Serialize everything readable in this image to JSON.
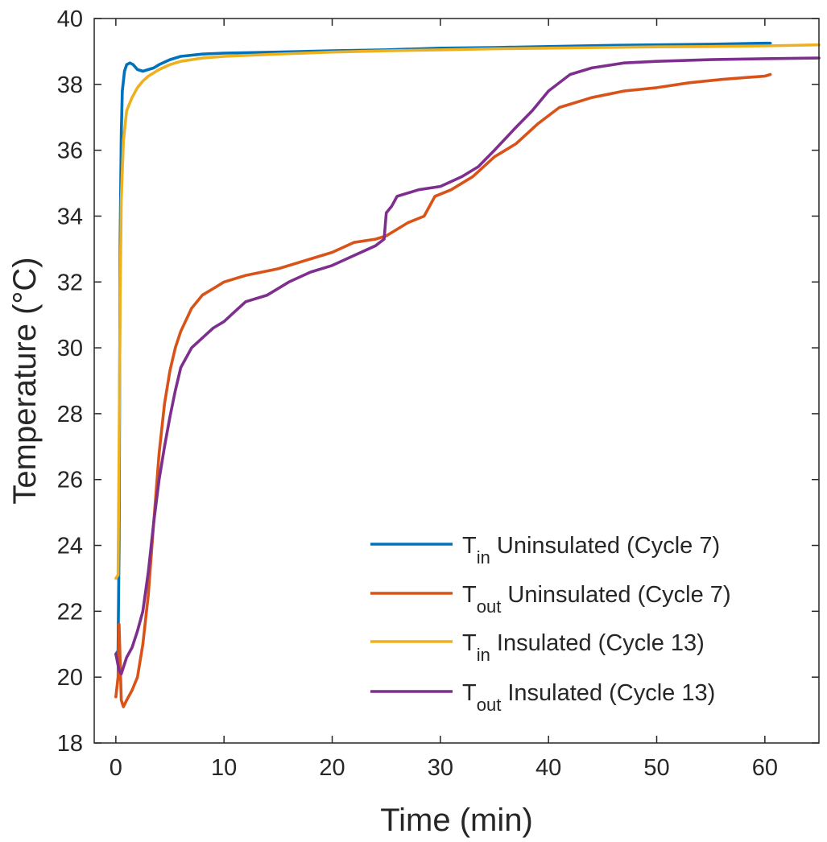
{
  "chart_data": {
    "type": "line",
    "xlabel": "Time (min)",
    "ylabel": "Temperature (°C)",
    "xlim": [
      -2,
      65
    ],
    "ylim": [
      18,
      40
    ],
    "xticks": [
      0,
      10,
      20,
      30,
      40,
      50,
      60
    ],
    "yticks": [
      18,
      20,
      22,
      24,
      26,
      28,
      30,
      32,
      34,
      36,
      38,
      40
    ],
    "grid": false,
    "box": true,
    "legend_position": "bottom-right",
    "series": [
      {
        "name": "T",
        "name_subscript": "in",
        "name_rest": " Uninsulated (Cycle 7)",
        "color": "#0072BD",
        "x": [
          0,
          0.2,
          0.3,
          0.4,
          0.5,
          0.6,
          0.8,
          1.0,
          1.3,
          1.6,
          2.0,
          2.5,
          3.0,
          3.5,
          4.0,
          5.0,
          6.0,
          8.0,
          10,
          15,
          20,
          25,
          30,
          35,
          40,
          45,
          50,
          55,
          60,
          60.5
        ],
        "y": [
          20.7,
          20.8,
          24.0,
          33.3,
          36.5,
          37.8,
          38.4,
          38.6,
          38.65,
          38.6,
          38.45,
          38.4,
          38.45,
          38.5,
          38.6,
          38.75,
          38.85,
          38.92,
          38.95,
          38.98,
          39.02,
          39.05,
          39.1,
          39.12,
          39.15,
          39.18,
          39.2,
          39.22,
          39.25,
          39.25
        ]
      },
      {
        "name": "T",
        "name_subscript": "out",
        "name_rest": " Uninsulated (Cycle 7)",
        "color": "#D95319",
        "x": [
          0,
          0.2,
          0.3,
          0.5,
          0.7,
          1.0,
          1.5,
          2.0,
          2.5,
          3.0,
          3.5,
          4.0,
          4.5,
          5.0,
          5.5,
          6.0,
          7.0,
          8.0,
          9.0,
          10,
          12,
          15,
          18,
          20,
          22,
          24,
          25,
          27,
          28.5,
          29.5,
          31,
          33,
          35,
          37,
          39,
          41,
          44,
          47,
          50,
          53,
          56,
          58,
          60,
          60.5
        ],
        "y": [
          19.4,
          20.0,
          21.6,
          19.3,
          19.1,
          19.3,
          19.6,
          20.0,
          21.0,
          22.5,
          24.7,
          26.8,
          28.3,
          29.3,
          30.0,
          30.5,
          31.2,
          31.6,
          31.8,
          32.0,
          32.2,
          32.4,
          32.7,
          32.9,
          33.2,
          33.3,
          33.4,
          33.8,
          34.0,
          34.6,
          34.8,
          35.2,
          35.8,
          36.2,
          36.8,
          37.3,
          37.6,
          37.8,
          37.9,
          38.05,
          38.15,
          38.2,
          38.25,
          38.3
        ]
      },
      {
        "name": "T",
        "name_subscript": "in",
        "name_rest": " Insulated (Cycle 13)",
        "color": "#EDB120",
        "x": [
          0,
          0.2,
          0.3,
          0.4,
          0.5,
          0.7,
          1.0,
          1.5,
          2.0,
          2.5,
          3.0,
          4.0,
          5.0,
          6.0,
          8.0,
          10,
          15,
          20,
          25,
          30,
          35,
          40,
          45,
          50,
          55,
          60,
          62,
          65
        ],
        "y": [
          23.0,
          23.1,
          27.0,
          31.5,
          34.5,
          36.3,
          37.2,
          37.6,
          37.9,
          38.1,
          38.25,
          38.45,
          38.6,
          38.7,
          38.8,
          38.85,
          38.92,
          38.98,
          39.02,
          39.05,
          39.08,
          39.1,
          39.12,
          39.14,
          39.15,
          39.17,
          39.18,
          39.2
        ]
      },
      {
        "name": "T",
        "name_subscript": "out",
        "name_rest": " Insulated (Cycle 13)",
        "color": "#7E2F8E",
        "x": [
          0,
          0.3,
          0.5,
          0.8,
          1.0,
          1.5,
          2.0,
          2.5,
          3.0,
          3.5,
          4.0,
          4.5,
          5.0,
          5.5,
          6.0,
          7.0,
          8.0,
          9.0,
          10,
          11,
          12,
          14,
          16,
          18,
          20,
          22,
          24,
          24.8,
          25.0,
          25.5,
          26,
          28,
          30,
          32,
          33.5,
          35,
          37,
          38.5,
          40,
          42,
          44,
          47,
          50,
          55,
          60,
          65
        ],
        "y": [
          20.7,
          20.2,
          20.1,
          20.4,
          20.6,
          20.9,
          21.4,
          22.0,
          23.2,
          24.7,
          26.0,
          27.0,
          27.9,
          28.7,
          29.4,
          30.0,
          30.3,
          30.6,
          30.8,
          31.1,
          31.4,
          31.6,
          32.0,
          32.3,
          32.5,
          32.8,
          33.1,
          33.3,
          34.1,
          34.3,
          34.6,
          34.8,
          34.9,
          35.2,
          35.5,
          36.0,
          36.7,
          37.2,
          37.8,
          38.3,
          38.5,
          38.65,
          38.7,
          38.75,
          38.78,
          38.8
        ]
      }
    ]
  }
}
